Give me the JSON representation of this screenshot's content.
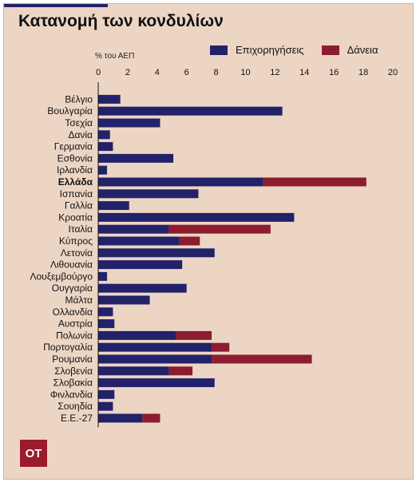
{
  "title": "Κατανομή των κονδυλίων",
  "logo_text": "OT",
  "chart_data": {
    "type": "bar",
    "orientation": "horizontal",
    "stacked": true,
    "unit_label": "% του ΑΕΠ",
    "xlim": [
      0,
      20
    ],
    "xticks": [
      "0",
      "2",
      "4",
      "6",
      "8",
      "10",
      "12",
      "14",
      "16",
      "18",
      "20"
    ],
    "grid": false,
    "legend_position": "top-right",
    "highlight_category": "Ελλάδα",
    "categories": [
      "Βέλγιο",
      "Βουλγαρία",
      "Τσεχία",
      "Δανία",
      "Γερμανία",
      "Εσθονία",
      "Ιρλανδία",
      "Ελλάδα",
      "Ισπανία",
      "Γαλλία",
      "Κροατία",
      "Ιταλία",
      "Κύπρος",
      "Λετονία",
      "Λιθουανία",
      "Λουξεμβούργο",
      "Ουγγαρία",
      "Μάλτα",
      "Ολλανδία",
      "Αυστρία",
      "Πολωνία",
      "Πορτογαλία",
      "Ρουμανία",
      "Σλοβενία",
      "Σλοβακία",
      "Φινλανδία",
      "Σουηδία",
      "Ε.Ε.-27"
    ],
    "series": [
      {
        "name": "Επιχορηγήσεις",
        "color": "#22226a",
        "values": [
          1.5,
          12.5,
          4.2,
          0.8,
          1.0,
          5.1,
          0.6,
          11.2,
          6.8,
          2.1,
          13.3,
          4.8,
          5.5,
          7.9,
          5.7,
          0.6,
          6.0,
          3.5,
          1.0,
          1.1,
          5.3,
          7.7,
          7.7,
          4.8,
          7.9,
          1.1,
          1.0,
          3.0
        ]
      },
      {
        "name": "Δάνεια",
        "color": "#8c1c30",
        "values": [
          0,
          0,
          0,
          0,
          0,
          0,
          0,
          7.0,
          0,
          0,
          0,
          6.9,
          1.4,
          0,
          0,
          0,
          0,
          0,
          0,
          0,
          2.4,
          1.2,
          6.8,
          1.6,
          0,
          0,
          0,
          1.2
        ]
      }
    ]
  }
}
